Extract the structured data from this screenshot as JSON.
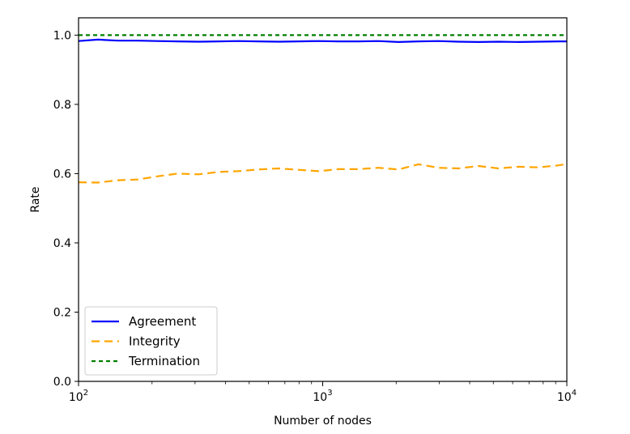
{
  "chart_data": {
    "type": "line",
    "xlabel": "Number of nodes",
    "ylabel": "Rate",
    "xscale": "log",
    "xlim": [
      100,
      10000
    ],
    "ylim": [
      0.0,
      1.05
    ],
    "x_ticks": [
      {
        "value": 100,
        "base": "10",
        "exp": "2"
      },
      {
        "value": 1000,
        "base": "10",
        "exp": "3"
      },
      {
        "value": 10000,
        "base": "10",
        "exp": "4"
      }
    ],
    "y_ticks": [
      {
        "value": 0.0,
        "label": "0.0"
      },
      {
        "value": 0.2,
        "label": "0.2"
      },
      {
        "value": 0.4,
        "label": "0.4"
      },
      {
        "value": 0.6,
        "label": "0.6"
      },
      {
        "value": 0.8,
        "label": "0.8"
      },
      {
        "value": 1.0,
        "label": "1.0"
      }
    ],
    "grid": false,
    "legend_position": "lower-left",
    "x": [
      100,
      120,
      145,
      175,
      210,
      255,
      310,
      375,
      450,
      545,
      660,
      795,
      960,
      1160,
      1400,
      1690,
      2040,
      2470,
      2980,
      3600,
      4350,
      5250,
      6350,
      7650,
      9250,
      10000
    ],
    "series": [
      {
        "name": "Agreement",
        "color": "#0000ff",
        "style": "solid",
        "values": [
          0.983,
          0.987,
          0.984,
          0.984,
          0.983,
          0.982,
          0.981,
          0.982,
          0.983,
          0.982,
          0.981,
          0.982,
          0.983,
          0.982,
          0.982,
          0.983,
          0.98,
          0.982,
          0.983,
          0.981,
          0.98,
          0.981,
          0.98,
          0.981,
          0.982,
          0.982
        ]
      },
      {
        "name": "Integrity",
        "color": "#ffa500",
        "style": "dashed",
        "values": [
          0.575,
          0.574,
          0.581,
          0.583,
          0.592,
          0.6,
          0.598,
          0.605,
          0.607,
          0.612,
          0.615,
          0.611,
          0.607,
          0.613,
          0.613,
          0.617,
          0.612,
          0.627,
          0.617,
          0.615,
          0.622,
          0.615,
          0.62,
          0.618,
          0.624,
          0.628
        ]
      },
      {
        "name": "Termination",
        "color": "#008000",
        "style": "dotted",
        "values": [
          1.0,
          1.0,
          1.0,
          1.0,
          1.0,
          1.0,
          1.0,
          1.0,
          1.0,
          1.0,
          1.0,
          1.0,
          1.0,
          1.0,
          1.0,
          1.0,
          1.0,
          1.0,
          1.0,
          1.0,
          1.0,
          1.0,
          1.0,
          1.0,
          1.0,
          1.0
        ]
      }
    ]
  }
}
